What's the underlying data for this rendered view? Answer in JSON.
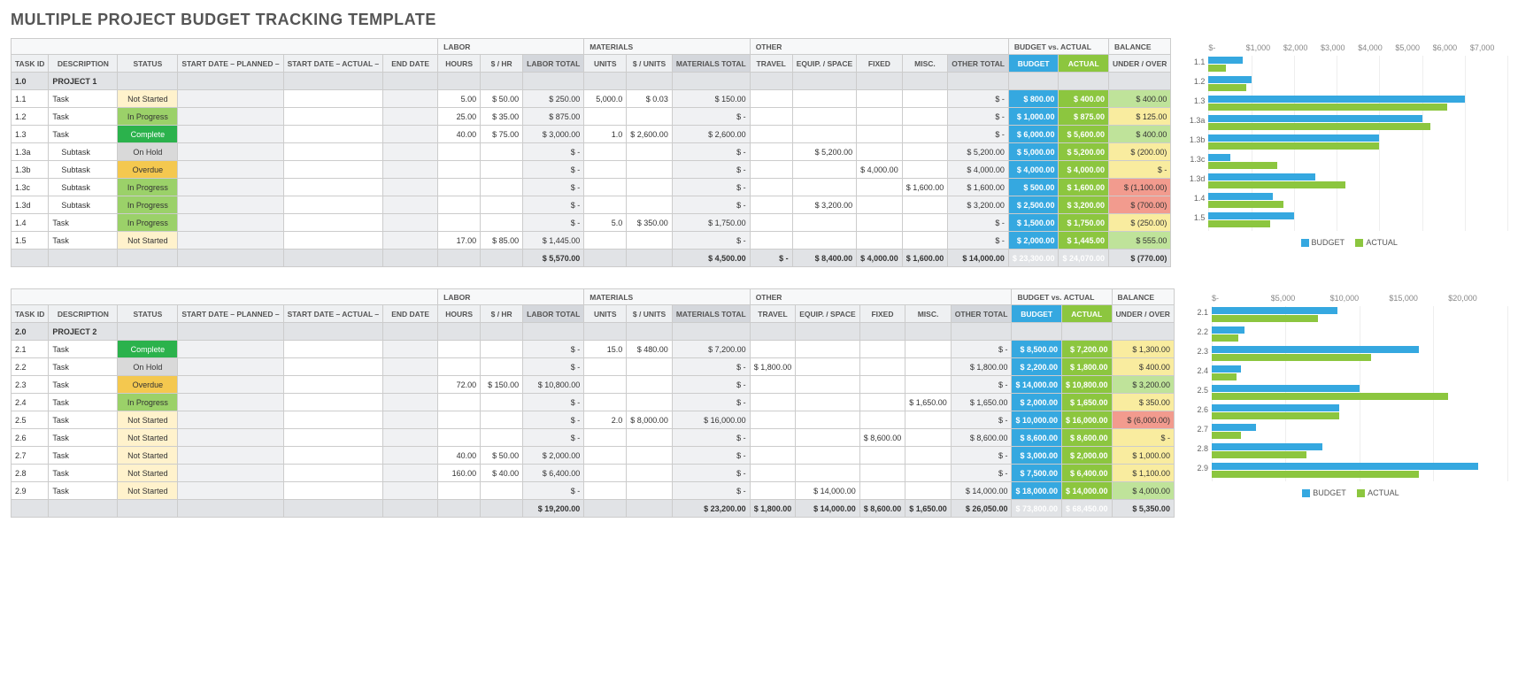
{
  "title": "MULTIPLE PROJECT BUDGET TRACKING TEMPLATE",
  "columns": {
    "task_id": "TASK ID",
    "description": "DESCRIPTION",
    "status": "STATUS",
    "start_planned": "START DATE – PLANNED –",
    "start_actual": "START DATE – ACTUAL –",
    "end_date": "END DATE",
    "labor": "LABOR",
    "hours": "HOURS",
    "rate": "$ / HR",
    "labor_total": "LABOR TOTAL",
    "materials": "MATERIALS",
    "units": "UNITS",
    "unit_cost": "$ / UNITS",
    "materials_total": "MATERIALS TOTAL",
    "other": "OTHER",
    "travel": "TRAVEL",
    "equip": "EQUIP. / SPACE",
    "fixed": "FIXED",
    "misc": "MISC.",
    "other_total": "OTHER TOTAL",
    "bva": "BUDGET vs. ACTUAL",
    "budget": "BUDGET",
    "actual": "ACTUAL",
    "balance": "BALANCE",
    "under_over": "UNDER / OVER"
  },
  "status_styles": {
    "Not Started": "st-ns",
    "In Progress": "st-ip",
    "Complete": "st-cp",
    "On Hold": "st-oh",
    "Overdue": "st-ov"
  },
  "projects": [
    {
      "id": "1.0",
      "name": "PROJECT 1",
      "chart": {
        "ticks": [
          "$-",
          "$1,000",
          "$2,000",
          "$3,000",
          "$4,000",
          "$5,000",
          "$6,000",
          "$7,000"
        ],
        "max": 7000
      },
      "rows": [
        {
          "id": "1.1",
          "desc": "Task",
          "status": "Not Started",
          "hours": "5.00",
          "rate": "$   50.00",
          "labor_total": "$    250.00",
          "units": "5,000.0",
          "unit_cost": "$    0.03",
          "mat_total": "$    150.00",
          "other_total": "$          -",
          "budget": "$    800.00",
          "actual": "$    400.00",
          "balance": "$    400.00",
          "bclass": "bal-pos",
          "bud": 800,
          "act": 400
        },
        {
          "id": "1.2",
          "desc": "Task",
          "status": "In Progress",
          "hours": "25.00",
          "rate": "$   35.00",
          "labor_total": "$    875.00",
          "mat_total": "$          -",
          "other_total": "$          -",
          "budget": "$ 1,000.00",
          "actual": "$    875.00",
          "balance": "$    125.00",
          "bclass": "bal-ylw",
          "bud": 1000,
          "act": 875
        },
        {
          "id": "1.3",
          "desc": "Task",
          "status": "Complete",
          "hours": "40.00",
          "rate": "$   75.00",
          "labor_total": "$ 3,000.00",
          "units": "1.0",
          "unit_cost": "$ 2,600.00",
          "mat_total": "$ 2,600.00",
          "other_total": "$          -",
          "budget": "$ 6,000.00",
          "actual": "$ 5,600.00",
          "balance": "$    400.00",
          "bclass": "bal-pos",
          "bud": 6000,
          "act": 5600
        },
        {
          "id": "1.3a",
          "desc": "Subtask",
          "sub": true,
          "status": "On Hold",
          "labor_total": "$          -",
          "mat_total": "$          -",
          "equip": "$ 5,200.00",
          "other_total": "$ 5,200.00",
          "budget": "$ 5,000.00",
          "actual": "$ 5,200.00",
          "balance": "$   (200.00)",
          "bclass": "bal-ylw",
          "bud": 5000,
          "act": 5200
        },
        {
          "id": "1.3b",
          "desc": "Subtask",
          "sub": true,
          "status": "Overdue",
          "labor_total": "$          -",
          "mat_total": "$          -",
          "fixed": "$ 4,000.00",
          "other_total": "$ 4,000.00",
          "budget": "$ 4,000.00",
          "actual": "$ 4,000.00",
          "balance": "$          -",
          "bclass": "bal-zero",
          "bud": 4000,
          "act": 4000
        },
        {
          "id": "1.3c",
          "desc": "Subtask",
          "sub": true,
          "status": "In Progress",
          "labor_total": "$          -",
          "mat_total": "$          -",
          "misc": "$ 1,600.00",
          "other_total": "$ 1,600.00",
          "budget": "$    500.00",
          "actual": "$ 1,600.00",
          "balance": "$ (1,100.00)",
          "bclass": "bal-neg",
          "bud": 500,
          "act": 1600
        },
        {
          "id": "1.3d",
          "desc": "Subtask",
          "sub": true,
          "status": "In Progress",
          "labor_total": "$          -",
          "mat_total": "$          -",
          "equip": "$ 3,200.00",
          "other_total": "$ 3,200.00",
          "budget": "$ 2,500.00",
          "actual": "$ 3,200.00",
          "balance": "$   (700.00)",
          "bclass": "bal-neg",
          "bud": 2500,
          "act": 3200
        },
        {
          "id": "1.4",
          "desc": "Task",
          "status": "In Progress",
          "labor_total": "$          -",
          "units": "5.0",
          "unit_cost": "$  350.00",
          "mat_total": "$ 1,750.00",
          "other_total": "$          -",
          "budget": "$ 1,500.00",
          "actual": "$ 1,750.00",
          "balance": "$   (250.00)",
          "bclass": "bal-ylw",
          "bud": 1500,
          "act": 1750
        },
        {
          "id": "1.5",
          "desc": "Task",
          "status": "Not Started",
          "hours": "17.00",
          "rate": "$   85.00",
          "labor_total": "$ 1,445.00",
          "mat_total": "$          -",
          "other_total": "$          -",
          "budget": "$ 2,000.00",
          "actual": "$ 1,445.00",
          "balance": "$    555.00",
          "bclass": "bal-pos",
          "bud": 2000,
          "act": 1445
        }
      ],
      "totals": {
        "labor_total": "$  5,570.00",
        "mat_total": "$  4,500.00",
        "travel": "$         -",
        "equip": "$  8,400.00",
        "fixed": "$  4,000.00",
        "misc": "$  1,600.00",
        "other_total": "$ 14,000.00",
        "budget": "$ 23,300.00",
        "actual": "$ 24,070.00",
        "balance": "$    (770.00)",
        "bclass": "bal-neg"
      }
    },
    {
      "id": "2.0",
      "name": "PROJECT 2",
      "chart": {
        "ticks": [
          "$-",
          "$5,000",
          "$10,000",
          "$15,000",
          "$20,000"
        ],
        "max": 20000
      },
      "rows": [
        {
          "id": "2.1",
          "desc": "Task",
          "status": "Complete",
          "labor_total": "$          -",
          "units": "15.0",
          "unit_cost": "$  480.00",
          "mat_total": "$ 7,200.00",
          "other_total": "$          -",
          "budget": "$ 8,500.00",
          "actual": "$ 7,200.00",
          "balance": "$ 1,300.00",
          "bclass": "bal-ylw",
          "bud": 8500,
          "act": 7200
        },
        {
          "id": "2.2",
          "desc": "Task",
          "status": "On Hold",
          "labor_total": "$          -",
          "mat_total": "$          -",
          "travel": "$ 1,800.00",
          "other_total": "$ 1,800.00",
          "budget": "$ 2,200.00",
          "actual": "$ 1,800.00",
          "balance": "$    400.00",
          "bclass": "bal-ylw",
          "bud": 2200,
          "act": 1800
        },
        {
          "id": "2.3",
          "desc": "Task",
          "status": "Overdue",
          "hours": "72.00",
          "rate": "$ 150.00",
          "labor_total": "$ 10,800.00",
          "mat_total": "$          -",
          "other_total": "$          -",
          "budget": "$ 14,000.00",
          "actual": "$ 10,800.00",
          "balance": "$ 3,200.00",
          "bclass": "bal-pos",
          "bud": 14000,
          "act": 10800
        },
        {
          "id": "2.4",
          "desc": "Task",
          "status": "In Progress",
          "labor_total": "$          -",
          "mat_total": "$          -",
          "misc": "$ 1,650.00",
          "other_total": "$ 1,650.00",
          "budget": "$ 2,000.00",
          "actual": "$ 1,650.00",
          "balance": "$    350.00",
          "bclass": "bal-ylw",
          "bud": 2000,
          "act": 1650
        },
        {
          "id": "2.5",
          "desc": "Task",
          "status": "Not Started",
          "labor_total": "$          -",
          "units": "2.0",
          "unit_cost": "$ 8,000.00",
          "mat_total": "$ 16,000.00",
          "other_total": "$          -",
          "budget": "$ 10,000.00",
          "actual": "$ 16,000.00",
          "balance": "$ (6,000.00)",
          "bclass": "bal-neg",
          "bud": 10000,
          "act": 16000
        },
        {
          "id": "2.6",
          "desc": "Task",
          "status": "Not Started",
          "labor_total": "$          -",
          "mat_total": "$          -",
          "fixed": "$ 8,600.00",
          "other_total": "$ 8,600.00",
          "budget": "$ 8,600.00",
          "actual": "$ 8,600.00",
          "balance": "$          -",
          "bclass": "bal-zero",
          "bud": 8600,
          "act": 8600
        },
        {
          "id": "2.7",
          "desc": "Task",
          "status": "Not Started",
          "hours": "40.00",
          "rate": "$   50.00",
          "labor_total": "$ 2,000.00",
          "mat_total": "$          -",
          "other_total": "$          -",
          "budget": "$ 3,000.00",
          "actual": "$ 2,000.00",
          "balance": "$ 1,000.00",
          "bclass": "bal-ylw",
          "bud": 3000,
          "act": 2000
        },
        {
          "id": "2.8",
          "desc": "Task",
          "status": "Not Started",
          "hours": "160.00",
          "rate": "$   40.00",
          "labor_total": "$ 6,400.00",
          "mat_total": "$          -",
          "other_total": "$          -",
          "budget": "$ 7,500.00",
          "actual": "$ 6,400.00",
          "balance": "$ 1,100.00",
          "bclass": "bal-ylw",
          "bud": 7500,
          "act": 6400
        },
        {
          "id": "2.9",
          "desc": "Task",
          "status": "Not Started",
          "labor_total": "$          -",
          "mat_total": "$          -",
          "equip": "$ 14,000.00",
          "other_total": "$ 14,000.00",
          "budget": "$ 18,000.00",
          "actual": "$ 14,000.00",
          "balance": "$ 4,000.00",
          "bclass": "bal-pos",
          "bud": 18000,
          "act": 14000
        }
      ],
      "totals": {
        "labor_total": "$ 19,200.00",
        "mat_total": "$ 23,200.00",
        "travel": "$  1,800.00",
        "equip": "$ 14,000.00",
        "fixed": "$  8,600.00",
        "misc": "$  1,650.00",
        "other_total": "$ 26,050.00",
        "budget": "$ 73,800.00",
        "actual": "$ 68,450.00",
        "balance": "$  5,350.00",
        "bclass": "bal-pos"
      }
    }
  ],
  "legend": {
    "budget": "BUDGET",
    "actual": "ACTUAL"
  }
}
